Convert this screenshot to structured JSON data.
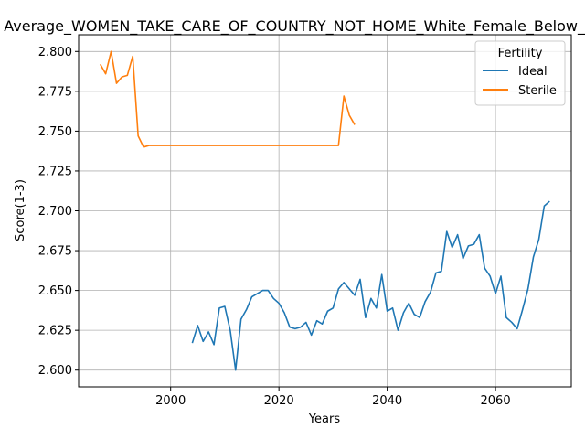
{
  "chart_data": {
    "type": "line",
    "title": "Average_WOMEN_TAKE_CARE_OF_COUNTRY_NOT_HOME_White_Female_Below_Average",
    "xlabel": "Years",
    "ylabel": "Score(1-3)",
    "xlim": [
      1983,
      2074
    ],
    "ylim": [
      2.5895,
      2.8105
    ],
    "xticks": [
      2000,
      2020,
      2040,
      2060
    ],
    "yticks": [
      2.6,
      2.625,
      2.65,
      2.675,
      2.7,
      2.725,
      2.75,
      2.775,
      2.8
    ],
    "grid": true,
    "legend": {
      "title": "Fertility",
      "position": "top-right"
    },
    "colors": {
      "Ideal": "#1f77b4",
      "Sterile": "#ff7f0e"
    },
    "series": [
      {
        "name": "Ideal",
        "x": [
          2004,
          2005,
          2006,
          2007,
          2008,
          2009,
          2010,
          2011,
          2012,
          2013,
          2014,
          2015,
          2016,
          2017,
          2018,
          2019,
          2020,
          2021,
          2022,
          2023,
          2024,
          2025,
          2026,
          2027,
          2028,
          2029,
          2030,
          2031,
          2032,
          2033,
          2034,
          2035,
          2036,
          2037,
          2038,
          2039,
          2040,
          2041,
          2042,
          2043,
          2044,
          2045,
          2046,
          2047,
          2048,
          2049,
          2050,
          2051,
          2052,
          2053,
          2054,
          2055,
          2056,
          2057,
          2058,
          2059,
          2060,
          2061,
          2062,
          2063,
          2064,
          2065,
          2066,
          2067,
          2068,
          2069,
          2070
        ],
        "y": [
          2.617,
          2.628,
          2.618,
          2.624,
          2.616,
          2.639,
          2.64,
          2.625,
          2.6,
          2.632,
          2.638,
          2.646,
          2.648,
          2.65,
          2.65,
          2.645,
          2.642,
          2.636,
          2.627,
          2.626,
          2.627,
          2.63,
          2.622,
          2.631,
          2.629,
          2.637,
          2.639,
          2.651,
          2.655,
          2.651,
          2.647,
          2.657,
          2.633,
          2.645,
          2.639,
          2.66,
          2.637,
          2.639,
          2.625,
          2.636,
          2.642,
          2.635,
          2.633,
          2.643,
          2.649,
          2.661,
          2.662,
          2.687,
          2.677,
          2.685,
          2.67,
          2.678,
          2.679,
          2.685,
          2.664,
          2.659,
          2.648,
          2.659,
          2.633,
          2.63,
          2.626,
          2.638,
          2.651,
          2.671,
          2.682,
          2.703,
          2.706
        ]
      },
      {
        "name": "Sterile",
        "x": [
          1987,
          1988,
          1989,
          1990,
          1991,
          1992,
          1993,
          1994,
          1995,
          1996,
          1997,
          1998,
          1999,
          2000,
          2001,
          2002,
          2003,
          2004,
          2005,
          2006,
          2007,
          2008,
          2009,
          2010,
          2011,
          2012,
          2013,
          2014,
          2015,
          2016,
          2017,
          2018,
          2019,
          2020,
          2021,
          2022,
          2023,
          2024,
          2025,
          2026,
          2027,
          2028,
          2029,
          2030,
          2031,
          2032,
          2033,
          2034
        ],
        "y": [
          2.792,
          2.786,
          2.8,
          2.78,
          2.784,
          2.785,
          2.797,
          2.747,
          2.74,
          2.741,
          2.741,
          2.741,
          2.741,
          2.741,
          2.741,
          2.741,
          2.741,
          2.741,
          2.741,
          2.741,
          2.741,
          2.741,
          2.741,
          2.741,
          2.741,
          2.741,
          2.741,
          2.741,
          2.741,
          2.741,
          2.741,
          2.741,
          2.741,
          2.741,
          2.741,
          2.741,
          2.741,
          2.741,
          2.741,
          2.741,
          2.741,
          2.741,
          2.741,
          2.741,
          2.741,
          2.772,
          2.76,
          2.754
        ]
      }
    ]
  }
}
